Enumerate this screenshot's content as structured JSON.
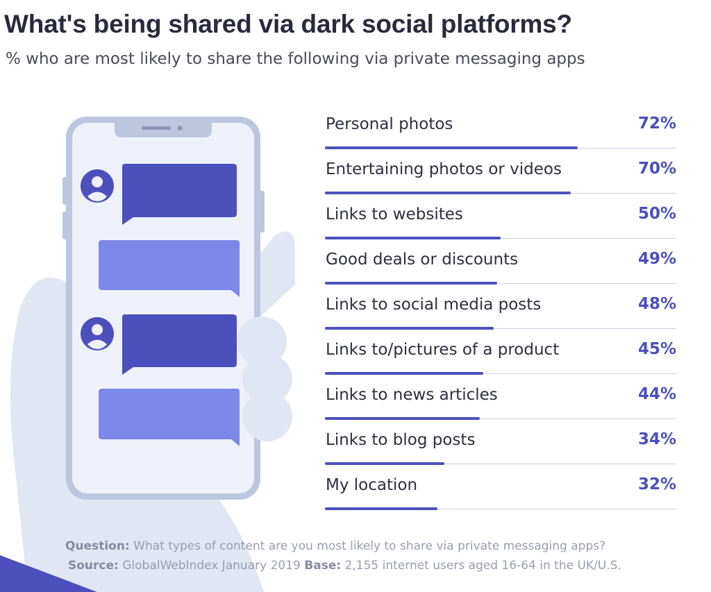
{
  "title": "What's being shared via dark social platforms?",
  "subtitle": "% who are most likely to share the following via private messaging apps",
  "colors": {
    "bar": "#4b50bd",
    "value_text": "#4a4fbe",
    "track": "#cfd1e0"
  },
  "chart_data": {
    "type": "bar",
    "orientation": "horizontal",
    "title": "What's being shared via dark social platforms?",
    "subtitle": "% who are most likely to share the following via private messaging apps",
    "categories": [
      "Personal photos",
      "Entertaining photos or videos",
      "Links to websites",
      "Good deals or discounts",
      "Links to social media posts",
      "Links to/pictures of a product",
      "Links to news articles",
      "Links to blog posts",
      "My location"
    ],
    "values": [
      72,
      70,
      50,
      49,
      48,
      45,
      44,
      34,
      32
    ],
    "value_labels": [
      "72%",
      "70%",
      "50%",
      "49%",
      "48%",
      "45%",
      "44%",
      "34%",
      "32%"
    ],
    "xlim": [
      0,
      100
    ],
    "grid": false,
    "legend": "none"
  },
  "footnote": {
    "question_label": "Question:",
    "question_text": "What types of content are you most likely to share via private messaging apps?",
    "source_label": "Source:",
    "source_text": "GlobalWebIndex January 2019",
    "base_label": "Base:",
    "base_text": "2,155 internet users aged 16-64 in the UK/U.S."
  }
}
